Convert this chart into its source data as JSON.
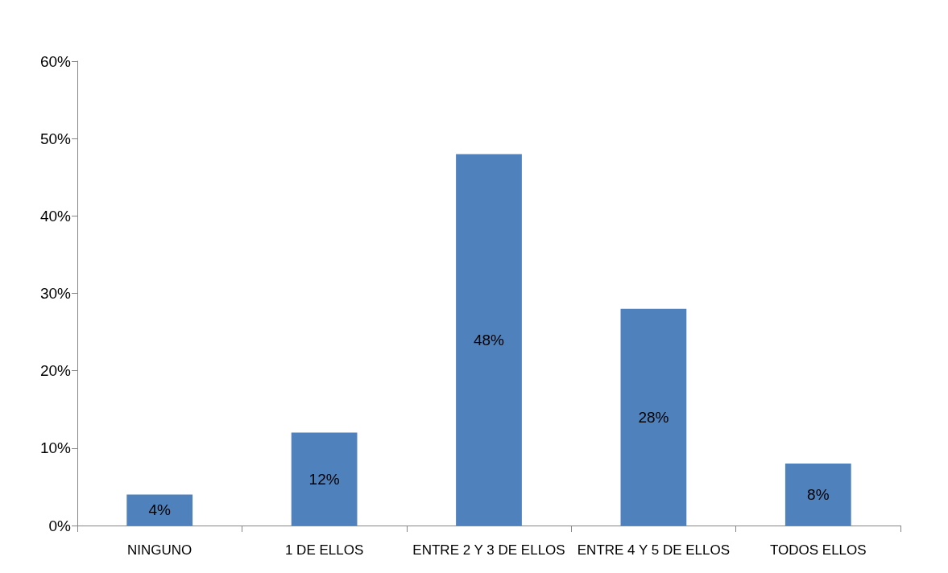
{
  "chart_data": {
    "type": "bar",
    "categories": [
      "NINGUNO",
      "1 DE ELLOS",
      "ENTRE 2 Y 3 DE ELLOS",
      "ENTRE 4 Y 5 DE ELLOS",
      "TODOS ELLOS"
    ],
    "values": [
      4,
      12,
      48,
      28,
      8
    ],
    "color": "#4f81bd",
    "value_labels": [
      "4%",
      "12%",
      "48%",
      "28%",
      "8%"
    ],
    "ylim": [
      0,
      60
    ],
    "yticks": [
      {
        "value": 0,
        "label": "0%"
      },
      {
        "value": 10,
        "label": "10%"
      },
      {
        "value": 20,
        "label": "20%"
      },
      {
        "value": 30,
        "label": "30%"
      },
      {
        "value": 40,
        "label": "40%"
      },
      {
        "value": 50,
        "label": "50%"
      },
      {
        "value": 60,
        "label": "60%"
      }
    ],
    "grid": false
  }
}
